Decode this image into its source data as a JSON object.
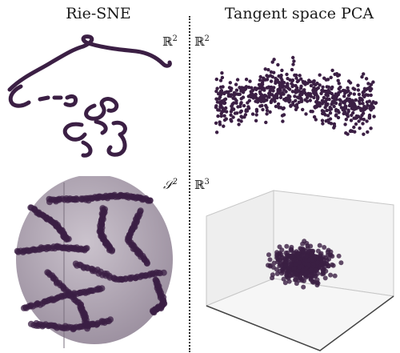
{
  "titles": {
    "left": "Rie-SNE",
    "right": "Tangent space PCA"
  },
  "labels": {
    "top_left": "ℝ",
    "top_left_exp": "2",
    "top_right": "ℝ",
    "top_right_exp": "2",
    "bottom_left": "𝒮",
    "bottom_left_exp": "2",
    "bottom_right": "ℝ",
    "bottom_right_exp": "3"
  },
  "colors": {
    "point": "#3b1f44",
    "sphere_fill": "#a59aa8",
    "cube_wall": "#ececec",
    "cube_edge": "#bdbdbd"
  }
}
